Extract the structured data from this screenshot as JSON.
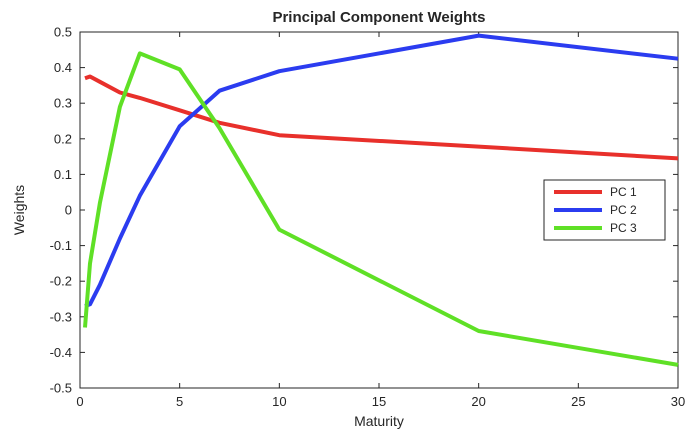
{
  "chart_data": {
    "type": "line",
    "title": "Principal Component Weights",
    "xlabel": "Maturity",
    "ylabel": "Weights",
    "xlim": [
      0,
      30
    ],
    "ylim": [
      -0.5,
      0.5
    ],
    "x_ticks": [
      "0",
      "5",
      "10",
      "15",
      "20",
      "25",
      "30"
    ],
    "y_ticks": [
      "0.5",
      "0.4",
      "0.3",
      "0.2",
      "0.1",
      "0",
      "-0.1",
      "-0.2",
      "-0.3",
      "-0.4",
      "-0.5"
    ],
    "x": [
      0.25,
      0.5,
      1,
      2,
      3,
      5,
      7,
      10,
      20,
      30
    ],
    "grid": false,
    "legend_position": "right",
    "series": [
      {
        "name": "PC 1",
        "color": "#e8302b",
        "values": [
          0.37,
          0.375,
          0.36,
          0.33,
          0.315,
          0.28,
          0.245,
          0.21,
          0.178,
          0.145
        ]
      },
      {
        "name": "PC 2",
        "color": "#2b3cf0",
        "values": [
          -0.27,
          -0.265,
          -0.21,
          -0.08,
          0.04,
          0.235,
          0.335,
          0.39,
          0.49,
          0.425
        ]
      },
      {
        "name": "PC 3",
        "color": "#5fe026",
        "values": [
          -0.33,
          -0.15,
          0.02,
          0.29,
          0.44,
          0.395,
          0.23,
          -0.055,
          -0.34,
          -0.435
        ]
      }
    ]
  }
}
